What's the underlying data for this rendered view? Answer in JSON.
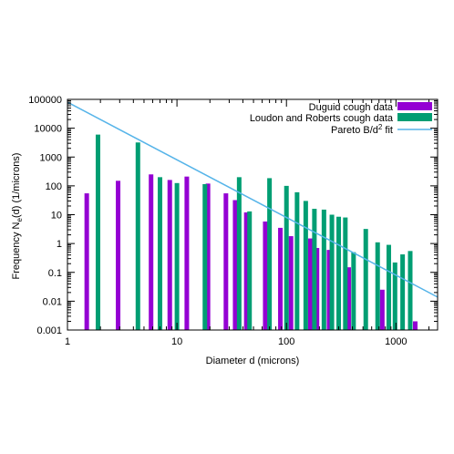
{
  "chart_data": {
    "type": "bar",
    "xlabel": "Diameter d (microns)",
    "ylabel_parts": {
      "pre": "Frequency N",
      "sub": "e",
      "post": "(d) (1/microns)"
    },
    "xscale": "log",
    "yscale": "log",
    "xlim": [
      1,
      2400
    ],
    "ylim": [
      0.001,
      100000
    ],
    "x_ticks": [
      {
        "value": 1,
        "label": "1"
      },
      {
        "value": 10,
        "label": "10"
      },
      {
        "value": 100,
        "label": "100"
      },
      {
        "value": 1000,
        "label": "1000"
      }
    ],
    "y_ticks": [
      {
        "value": 0.001,
        "label": "0.001"
      },
      {
        "value": 0.01,
        "label": "0.01"
      },
      {
        "value": 0.1,
        "label": "0.1"
      },
      {
        "value": 1,
        "label": "1"
      },
      {
        "value": 10,
        "label": "10"
      },
      {
        "value": 100,
        "label": "100"
      },
      {
        "value": 1000,
        "label": "1000"
      },
      {
        "value": 10000,
        "label": "10000"
      },
      {
        "value": 100000,
        "label": "100000"
      }
    ],
    "legend_position": "top-right",
    "series": [
      {
        "name": "Duguid cough data",
        "color": "#9400d3",
        "points": [
          {
            "x": 1.5,
            "y": 55
          },
          {
            "x": 2.9,
            "y": 150
          },
          {
            "x": 5.8,
            "y": 250
          },
          {
            "x": 8.6,
            "y": 160
          },
          {
            "x": 12.3,
            "y": 210
          },
          {
            "x": 19.2,
            "y": 120
          },
          {
            "x": 28,
            "y": 55
          },
          {
            "x": 34,
            "y": 32
          },
          {
            "x": 43,
            "y": 12
          },
          {
            "x": 64,
            "y": 5.8
          },
          {
            "x": 88,
            "y": 3.5
          },
          {
            "x": 110,
            "y": 1.8
          },
          {
            "x": 165,
            "y": 1.5
          },
          {
            "x": 190,
            "y": 0.7
          },
          {
            "x": 245,
            "y": 0.6
          },
          {
            "x": 370,
            "y": 0.15
          },
          {
            "x": 750,
            "y": 0.025
          },
          {
            "x": 1500,
            "y": 0.002
          }
        ]
      },
      {
        "name": "Loudon and Roberts cough data",
        "color": "#009e73",
        "points": [
          {
            "x": 1.9,
            "y": 6000
          },
          {
            "x": 4.4,
            "y": 3200
          },
          {
            "x": 7,
            "y": 200
          },
          {
            "x": 10,
            "y": 125
          },
          {
            "x": 18,
            "y": 115
          },
          {
            "x": 37,
            "y": 200
          },
          {
            "x": 46,
            "y": 13
          },
          {
            "x": 70,
            "y": 185
          },
          {
            "x": 100,
            "y": 100
          },
          {
            "x": 125,
            "y": 60
          },
          {
            "x": 150,
            "y": 30
          },
          {
            "x": 180,
            "y": 16
          },
          {
            "x": 220,
            "y": 15
          },
          {
            "x": 260,
            "y": 10
          },
          {
            "x": 300,
            "y": 8.5
          },
          {
            "x": 345,
            "y": 8
          },
          {
            "x": 410,
            "y": 0.5
          },
          {
            "x": 530,
            "y": 3.2
          },
          {
            "x": 680,
            "y": 1.1
          },
          {
            "x": 860,
            "y": 0.9
          },
          {
            "x": 980,
            "y": 0.22
          },
          {
            "x": 1150,
            "y": 0.42
          },
          {
            "x": 1350,
            "y": 0.55
          }
        ]
      }
    ],
    "fit": {
      "name_parts": {
        "pre": "Pareto B/d",
        "sup": "2",
        "post": " fit"
      },
      "color": "#56b4e9",
      "B": 80000,
      "exponent": -2
    }
  }
}
